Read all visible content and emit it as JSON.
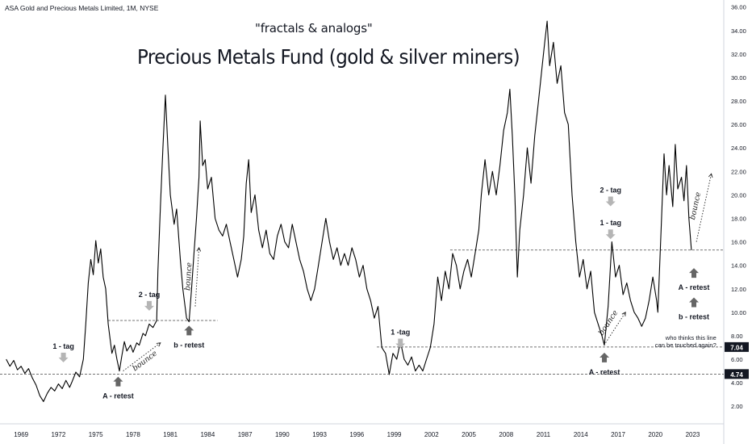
{
  "header": {
    "symbol": "ASA Gold and Precious Metals Limited, 1M, NYSE",
    "subtitle": "\"fractals & analogs\"",
    "title": "Precious Metals Fund (gold & silver miners)"
  },
  "chart_data": {
    "type": "line",
    "x_ticks": [
      "1969",
      "1972",
      "1975",
      "1978",
      "1981",
      "1984",
      "1987",
      "1990",
      "1993",
      "1996",
      "1999",
      "2002",
      "2005",
      "2008",
      "2011",
      "2014",
      "2017",
      "2020",
      "2023"
    ],
    "y_ticks": [
      "2.00",
      "4.00",
      "6.00",
      "8.00",
      "10.00",
      "12.00",
      "14.00",
      "16.00",
      "18.00",
      "20.00",
      "22.00",
      "24.00",
      "26.00",
      "28.00",
      "30.00",
      "32.00",
      "34.00",
      "36.00"
    ],
    "ylim": [
      0.5,
      36.6
    ],
    "xlim": [
      1967.3,
      2025.5
    ],
    "price_badges": [
      {
        "value": 7.04,
        "label": "7.04"
      },
      {
        "value": 4.74,
        "label": "4.74"
      }
    ],
    "series": [
      {
        "points": [
          [
            1967.8,
            6.0
          ],
          [
            1968.1,
            5.4
          ],
          [
            1968.4,
            5.9
          ],
          [
            1968.7,
            5.1
          ],
          [
            1969.0,
            5.4
          ],
          [
            1969.3,
            4.8
          ],
          [
            1969.6,
            5.2
          ],
          [
            1969.9,
            4.4
          ],
          [
            1970.2,
            3.8
          ],
          [
            1970.5,
            2.9
          ],
          [
            1970.8,
            2.4
          ],
          [
            1971.1,
            3.1
          ],
          [
            1971.4,
            3.6
          ],
          [
            1971.7,
            3.3
          ],
          [
            1972.0,
            3.9
          ],
          [
            1972.3,
            3.5
          ],
          [
            1972.6,
            4.2
          ],
          [
            1972.9,
            3.6
          ],
          [
            1973.1,
            4.1
          ],
          [
            1973.4,
            4.9
          ],
          [
            1973.7,
            4.5
          ],
          [
            1974.0,
            6.0
          ],
          [
            1974.2,
            9.0
          ],
          [
            1974.4,
            12.5
          ],
          [
            1974.6,
            14.5
          ],
          [
            1974.8,
            13.2
          ],
          [
            1975.0,
            16.1
          ],
          [
            1975.2,
            14.2
          ],
          [
            1975.4,
            15.4
          ],
          [
            1975.6,
            13.0
          ],
          [
            1975.8,
            12.0
          ],
          [
            1976.0,
            9.0
          ],
          [
            1976.3,
            6.5
          ],
          [
            1976.5,
            7.2
          ],
          [
            1976.7,
            6.0
          ],
          [
            1976.9,
            5.0
          ],
          [
            1977.1,
            6.3
          ],
          [
            1977.3,
            7.5
          ],
          [
            1977.5,
            6.7
          ],
          [
            1977.8,
            7.2
          ],
          [
            1978.0,
            6.6
          ],
          [
            1978.3,
            7.4
          ],
          [
            1978.5,
            7.2
          ],
          [
            1978.8,
            8.2
          ],
          [
            1979.0,
            8.0
          ],
          [
            1979.3,
            9.0
          ],
          [
            1979.6,
            8.7
          ],
          [
            1979.9,
            9.3
          ],
          [
            1980.0,
            13.5
          ],
          [
            1980.2,
            19.0
          ],
          [
            1980.4,
            24.0
          ],
          [
            1980.6,
            28.5
          ],
          [
            1980.8,
            24.0
          ],
          [
            1981.0,
            20.0
          ],
          [
            1981.3,
            17.5
          ],
          [
            1981.5,
            18.8
          ],
          [
            1981.8,
            14.5
          ],
          [
            1982.0,
            12.0
          ],
          [
            1982.3,
            9.5
          ],
          [
            1982.5,
            9.2
          ],
          [
            1982.7,
            12.0
          ],
          [
            1982.9,
            15.0
          ],
          [
            1983.1,
            18.0
          ],
          [
            1983.3,
            21.5
          ],
          [
            1983.4,
            26.3
          ],
          [
            1983.6,
            22.5
          ],
          [
            1983.8,
            23.0
          ],
          [
            1984.0,
            20.5
          ],
          [
            1984.3,
            21.5
          ],
          [
            1984.6,
            18.0
          ],
          [
            1984.9,
            17.0
          ],
          [
            1985.2,
            16.5
          ],
          [
            1985.5,
            17.5
          ],
          [
            1985.8,
            16.0
          ],
          [
            1986.1,
            14.5
          ],
          [
            1986.4,
            13.0
          ],
          [
            1986.7,
            14.5
          ],
          [
            1986.9,
            16.5
          ],
          [
            1987.1,
            21.0
          ],
          [
            1987.3,
            23.0
          ],
          [
            1987.5,
            18.5
          ],
          [
            1987.8,
            20.0
          ],
          [
            1988.1,
            17.0
          ],
          [
            1988.4,
            15.5
          ],
          [
            1988.7,
            17.0
          ],
          [
            1989.0,
            15.0
          ],
          [
            1989.3,
            14.5
          ],
          [
            1989.6,
            16.5
          ],
          [
            1989.9,
            17.5
          ],
          [
            1990.2,
            16.0
          ],
          [
            1990.5,
            15.5
          ],
          [
            1990.8,
            17.5
          ],
          [
            1991.1,
            16.0
          ],
          [
            1991.4,
            14.5
          ],
          [
            1991.7,
            13.5
          ],
          [
            1992.0,
            12.0
          ],
          [
            1992.3,
            11.0
          ],
          [
            1992.6,
            12.0
          ],
          [
            1992.9,
            14.0
          ],
          [
            1993.2,
            16.0
          ],
          [
            1993.5,
            18.0
          ],
          [
            1993.8,
            16.0
          ],
          [
            1994.1,
            14.5
          ],
          [
            1994.4,
            15.5
          ],
          [
            1994.7,
            14.0
          ],
          [
            1995.0,
            15.0
          ],
          [
            1995.3,
            14.0
          ],
          [
            1995.6,
            15.5
          ],
          [
            1995.9,
            14.5
          ],
          [
            1996.2,
            13.0
          ],
          [
            1996.5,
            14.0
          ],
          [
            1996.8,
            12.0
          ],
          [
            1997.1,
            11.0
          ],
          [
            1997.4,
            9.5
          ],
          [
            1997.7,
            10.5
          ],
          [
            1998.0,
            7.0
          ],
          [
            1998.3,
            6.5
          ],
          [
            1998.6,
            4.7
          ],
          [
            1998.9,
            6.5
          ],
          [
            1999.2,
            6.0
          ],
          [
            1999.5,
            7.5
          ],
          [
            1999.8,
            6.0
          ],
          [
            2000.1,
            5.5
          ],
          [
            2000.4,
            6.2
          ],
          [
            2000.7,
            5.0
          ],
          [
            2001.0,
            5.5
          ],
          [
            2001.3,
            5.0
          ],
          [
            2001.6,
            6.0
          ],
          [
            2001.9,
            7.0
          ],
          [
            2002.2,
            9.0
          ],
          [
            2002.5,
            13.0
          ],
          [
            2002.8,
            11.0
          ],
          [
            2003.1,
            13.5
          ],
          [
            2003.4,
            12.0
          ],
          [
            2003.7,
            15.0
          ],
          [
            2004.0,
            14.0
          ],
          [
            2004.3,
            12.0
          ],
          [
            2004.6,
            13.5
          ],
          [
            2004.9,
            14.5
          ],
          [
            2005.2,
            13.0
          ],
          [
            2005.5,
            15.0
          ],
          [
            2005.8,
            17.0
          ],
          [
            2006.0,
            20.0
          ],
          [
            2006.3,
            23.0
          ],
          [
            2006.6,
            20.0
          ],
          [
            2006.9,
            22.0
          ],
          [
            2007.2,
            20.0
          ],
          [
            2007.5,
            22.5
          ],
          [
            2007.8,
            25.5
          ],
          [
            2008.1,
            27.0
          ],
          [
            2008.3,
            29.0
          ],
          [
            2008.5,
            25.0
          ],
          [
            2008.7,
            20.0
          ],
          [
            2008.9,
            13.0
          ],
          [
            2009.1,
            17.0
          ],
          [
            2009.4,
            20.0
          ],
          [
            2009.7,
            24.0
          ],
          [
            2010.0,
            21.0
          ],
          [
            2010.3,
            25.0
          ],
          [
            2010.6,
            28.0
          ],
          [
            2010.9,
            31.0
          ],
          [
            2011.1,
            33.0
          ],
          [
            2011.3,
            34.8
          ],
          [
            2011.5,
            31.0
          ],
          [
            2011.8,
            33.0
          ],
          [
            2012.1,
            29.5
          ],
          [
            2012.4,
            31.0
          ],
          [
            2012.7,
            27.0
          ],
          [
            2013.0,
            26.0
          ],
          [
            2013.3,
            20.0
          ],
          [
            2013.6,
            16.0
          ],
          [
            2013.9,
            13.0
          ],
          [
            2014.2,
            14.5
          ],
          [
            2014.5,
            12.0
          ],
          [
            2014.8,
            13.5
          ],
          [
            2015.1,
            10.0
          ],
          [
            2015.4,
            9.0
          ],
          [
            2015.7,
            8.0
          ],
          [
            2015.9,
            7.2
          ],
          [
            2016.2,
            10.5
          ],
          [
            2016.5,
            16.0
          ],
          [
            2016.8,
            13.0
          ],
          [
            2017.1,
            14.0
          ],
          [
            2017.4,
            11.5
          ],
          [
            2017.7,
            12.5
          ],
          [
            2018.0,
            11.0
          ],
          [
            2018.3,
            10.0
          ],
          [
            2018.6,
            9.5
          ],
          [
            2018.9,
            8.8
          ],
          [
            2019.2,
            9.5
          ],
          [
            2019.5,
            11.0
          ],
          [
            2019.8,
            13.0
          ],
          [
            2020.1,
            11.0
          ],
          [
            2020.2,
            10.0
          ],
          [
            2020.5,
            18.0
          ],
          [
            2020.7,
            23.5
          ],
          [
            2020.9,
            20.0
          ],
          [
            2021.1,
            22.5
          ],
          [
            2021.4,
            19.0
          ],
          [
            2021.6,
            24.3
          ],
          [
            2021.8,
            20.5
          ],
          [
            2022.1,
            21.5
          ],
          [
            2022.3,
            19.5
          ],
          [
            2022.5,
            22.5
          ],
          [
            2022.7,
            18.0
          ],
          [
            2022.9,
            15.3
          ]
        ]
      }
    ],
    "reference_lines": [
      {
        "x0": 1967.3,
        "x1": 2025.5,
        "y": 4.74
      },
      {
        "x0": 1976.0,
        "x1": 1984.8,
        "y": 9.3
      },
      {
        "x0": 1997.6,
        "x1": 2025.5,
        "y": 7.04
      },
      {
        "x0": 2003.5,
        "x1": 2025.5,
        "y": 15.3
      }
    ],
    "annotations": [
      {
        "text": "1 - tag",
        "x": 1972.4,
        "y": 6.9,
        "arrow": "down",
        "arrow_color": "#b5b5b5"
      },
      {
        "text": "2 - tag",
        "x": 1979.3,
        "y": 11.3,
        "arrow": "down",
        "arrow_color": "#b5b5b5"
      },
      {
        "text": "A - retest",
        "x": 1976.8,
        "y": 3.55,
        "arrow": "up",
        "arrow_color": "#666666"
      },
      {
        "text": "b - retest",
        "x": 1982.5,
        "y": 7.9,
        "arrow": "up",
        "arrow_color": "#666666"
      },
      {
        "text": "1 -tag",
        "x": 1999.5,
        "y": 8.1,
        "arrow": "down",
        "arrow_color": "#b5b5b5"
      },
      {
        "text": "2 - tag",
        "x": 2016.4,
        "y": 20.2,
        "arrow": "down",
        "arrow_color": "#b5b5b5"
      },
      {
        "text": "1 - tag",
        "x": 2016.4,
        "y": 17.4,
        "arrow": "down",
        "arrow_color": "#b5b5b5"
      },
      {
        "text": "A - retest",
        "x": 2015.9,
        "y": 5.6,
        "arrow": "up",
        "arrow_color": "#666666"
      },
      {
        "text": "A - retest",
        "x": 2023.1,
        "y": 12.8,
        "arrow": "up",
        "arrow_color": "#666666"
      },
      {
        "text": "b - retest",
        "x": 2023.1,
        "y": 10.3,
        "arrow": "up",
        "arrow_color": "#666666"
      }
    ],
    "bounce_labels": [
      {
        "text": "bounce",
        "x0": 1977.2,
        "y0": 5.0,
        "x1": 1980.2,
        "y1": 7.4,
        "label_side": "below"
      },
      {
        "text": "bounce",
        "x0": 1983.0,
        "y0": 10.5,
        "x1": 1983.3,
        "y1": 15.5,
        "label_side": "right"
      },
      {
        "text": "bounce",
        "x0": 2016.0,
        "y0": 7.4,
        "x1": 2017.6,
        "y1": 10.0,
        "label_side": "right"
      },
      {
        "text": "bounce",
        "x0": 2023.3,
        "y0": 16.0,
        "x1": 2024.5,
        "y1": 21.8,
        "label_side": "right"
      }
    ],
    "notes": [
      {
        "lines": [
          "who thinks this line",
          "can be touched again?"
        ],
        "x": 2024.9,
        "y": 7.65
      }
    ],
    "line_color": "#000000"
  }
}
